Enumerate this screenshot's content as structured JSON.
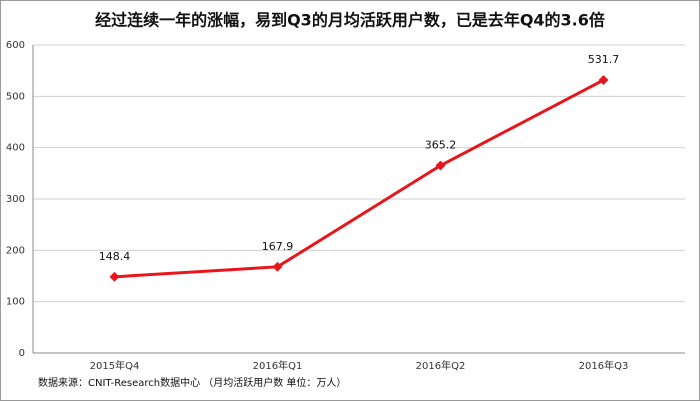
{
  "chart_data": {
    "type": "line",
    "title": "经过连续一年的涨幅，易到Q3的月均活跃用户数，已是去年Q4的3.6倍",
    "categories": [
      "2015年Q4",
      "2016年Q1",
      "2016年Q2",
      "2016年Q3"
    ],
    "series": [
      {
        "color": "#e8161b",
        "values": [
          148.4,
          167.9,
          365.2,
          531.7
        ]
      }
    ],
    "ylim": [
      0,
      600
    ],
    "yticks": [
      0,
      100,
      200,
      300,
      400,
      500,
      600
    ],
    "grid": true,
    "source": "数据来源：CNIT-Research数据中心 （月均活跃用户数 单位：万人）"
  }
}
